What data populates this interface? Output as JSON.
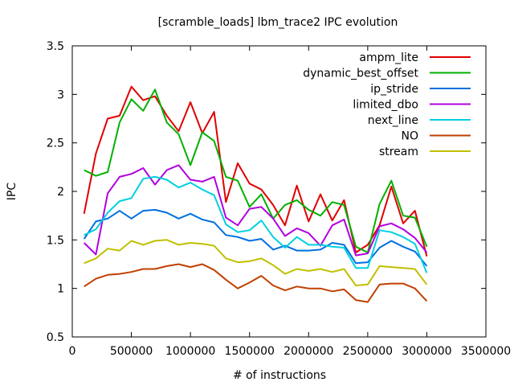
{
  "chart_data": {
    "type": "line",
    "title": "[scramble_loads] lbm_trace2 IPC evolution",
    "xlabel": "# of instructions",
    "ylabel": "IPC",
    "xlim": [
      0,
      3500000
    ],
    "ylim": [
      0.5,
      3.5
    ],
    "xticks": [
      0,
      500000,
      1000000,
      1500000,
      2000000,
      2500000,
      3000000,
      3500000
    ],
    "yticks": [
      0.5,
      1,
      1.5,
      2,
      2.5,
      3,
      3.5
    ],
    "grid": false,
    "legend_position": "top-right",
    "x": [
      100000,
      200000,
      300000,
      400000,
      500000,
      600000,
      700000,
      800000,
      900000,
      1000000,
      1100000,
      1200000,
      1300000,
      1400000,
      1500000,
      1600000,
      1700000,
      1800000,
      1900000,
      2000000,
      2100000,
      2200000,
      2300000,
      2400000,
      2500000,
      2600000,
      2700000,
      2800000,
      2900000,
      3000000
    ],
    "series": [
      {
        "name": "ampm_lite",
        "color": "#e00000",
        "values": [
          1.77,
          2.39,
          2.75,
          2.78,
          3.08,
          2.94,
          2.98,
          2.78,
          2.62,
          2.92,
          2.6,
          2.82,
          1.89,
          2.29,
          2.08,
          2.02,
          1.86,
          1.65,
          2.06,
          1.69,
          1.97,
          1.7,
          1.91,
          1.37,
          1.45,
          1.65,
          2.05,
          1.67,
          1.8,
          1.33
        ]
      },
      {
        "name": "dynamic_best_offset",
        "color": "#00b000",
        "values": [
          2.22,
          2.16,
          2.2,
          2.71,
          2.95,
          2.83,
          3.05,
          2.71,
          2.59,
          2.27,
          2.61,
          2.52,
          2.15,
          2.11,
          1.84,
          1.97,
          1.72,
          1.86,
          1.91,
          1.81,
          1.75,
          1.89,
          1.86,
          1.43,
          1.37,
          1.87,
          2.11,
          1.75,
          1.73,
          1.43
        ]
      },
      {
        "name": "ip_stride",
        "color": "#0070e0",
        "values": [
          1.51,
          1.69,
          1.72,
          1.8,
          1.72,
          1.8,
          1.81,
          1.78,
          1.72,
          1.77,
          1.71,
          1.68,
          1.55,
          1.53,
          1.49,
          1.51,
          1.4,
          1.44,
          1.39,
          1.39,
          1.4,
          1.47,
          1.45,
          1.26,
          1.27,
          1.42,
          1.49,
          1.43,
          1.38,
          1.23
        ]
      },
      {
        "name": "limited_dbo",
        "color": "#b000e0",
        "values": [
          1.47,
          1.35,
          1.98,
          2.15,
          2.18,
          2.24,
          2.07,
          2.22,
          2.27,
          2.12,
          2.1,
          2.15,
          1.73,
          1.65,
          1.82,
          1.84,
          1.72,
          1.54,
          1.62,
          1.57,
          1.44,
          1.65,
          1.71,
          1.34,
          1.36,
          1.64,
          1.67,
          1.61,
          1.52,
          1.37
        ]
      },
      {
        "name": "next_line",
        "color": "#00d0e0",
        "values": [
          1.55,
          1.61,
          1.78,
          1.9,
          1.93,
          2.13,
          2.15,
          2.12,
          2.04,
          2.09,
          2.02,
          1.96,
          1.66,
          1.58,
          1.6,
          1.7,
          1.53,
          1.42,
          1.53,
          1.45,
          1.45,
          1.43,
          1.42,
          1.21,
          1.21,
          1.6,
          1.58,
          1.53,
          1.46,
          1.16
        ]
      },
      {
        "name": "NO",
        "color": "#c04000",
        "values": [
          1.02,
          1.1,
          1.14,
          1.15,
          1.17,
          1.2,
          1.2,
          1.23,
          1.25,
          1.22,
          1.25,
          1.19,
          1.09,
          1.0,
          1.06,
          1.13,
          1.03,
          0.98,
          1.02,
          1.0,
          1.0,
          0.97,
          0.99,
          0.88,
          0.86,
          1.04,
          1.05,
          1.05,
          1.0,
          0.87
        ]
      },
      {
        "name": "stream",
        "color": "#c0c000",
        "values": [
          1.26,
          1.31,
          1.41,
          1.39,
          1.49,
          1.45,
          1.49,
          1.5,
          1.45,
          1.47,
          1.46,
          1.44,
          1.31,
          1.27,
          1.28,
          1.31,
          1.24,
          1.15,
          1.2,
          1.18,
          1.2,
          1.17,
          1.2,
          1.03,
          1.04,
          1.23,
          1.22,
          1.21,
          1.2,
          1.04
        ]
      }
    ]
  }
}
